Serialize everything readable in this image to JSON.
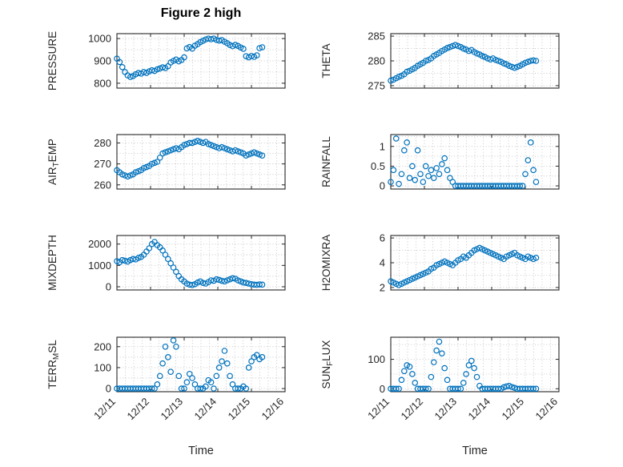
{
  "figure": {
    "title": "Figure 2 high"
  },
  "chart_data": {
    "type": "scatter",
    "title": "Figure 2 high",
    "xlabel": "Time",
    "xlim": [
      0,
      5
    ],
    "xticks": [
      0,
      1,
      2,
      3,
      4,
      5
    ],
    "xtick_labels": [
      "12/11",
      "12/12",
      "12/13",
      "12/14",
      "12/15",
      "12/16"
    ],
    "x_unit": "days since 12/11",
    "marker": {
      "shape": "circle",
      "color": "#0072BD"
    },
    "grid": "dotted",
    "x": [
      0,
      0.08,
      0.16,
      0.24,
      0.32,
      0.4,
      0.48,
      0.56,
      0.64,
      0.72,
      0.8,
      0.88,
      0.96,
      1.04,
      1.12,
      1.2,
      1.28,
      1.36,
      1.44,
      1.52,
      1.6,
      1.68,
      1.76,
      1.84,
      1.92,
      2,
      2.08,
      2.16,
      2.24,
      2.32,
      2.4,
      2.48,
      2.56,
      2.64,
      2.72,
      2.8,
      2.88,
      2.96,
      3.04,
      3.12,
      3.2,
      3.28,
      3.36,
      3.44,
      3.52,
      3.6,
      3.68,
      3.76,
      3.84,
      3.92,
      4,
      4.08,
      4.16,
      4.24,
      4.32
    ],
    "panels": [
      {
        "name": "PRESSURE",
        "ylabel": "PRESSURE",
        "ylabel_parts": [
          {
            "text": "PRESSURE",
            "sub": false
          }
        ],
        "yticks": [
          800,
          900,
          1000
        ],
        "ytick_labels": [
          "800",
          "900",
          "1000"
        ],
        "ylim": [
          778,
          1022
        ],
        "values": [
          910,
          895,
          872,
          850,
          835,
          828,
          832,
          840,
          846,
          843,
          850,
          846,
          853,
          858,
          855,
          862,
          866,
          871,
          868,
          876,
          893,
          900,
          906,
          898,
          904,
          916,
          956,
          962,
          955,
          968,
          975,
          984,
          990,
          996,
          1000,
          997,
          1000,
          994,
          991,
          993,
          986,
          979,
          971,
          966,
          972,
          967,
          960,
          954,
          921,
          916,
          922,
          918,
          925,
          957,
          961
        ]
      },
      {
        "name": "THETA",
        "ylabel": "THETA",
        "ylabel_parts": [
          {
            "text": "THETA",
            "sub": false
          }
        ],
        "yticks": [
          275,
          280,
          285
        ],
        "ytick_labels": [
          "275",
          "280",
          "285"
        ],
        "ylim": [
          274.5,
          285.5
        ],
        "values": [
          276,
          276.2,
          276.5,
          276.8,
          277,
          277.3,
          277.8,
          278,
          278.3,
          278.6,
          279,
          279.3,
          279.6,
          280,
          280.2,
          280.5,
          281,
          281.3,
          281.6,
          282,
          282.3,
          282.6,
          282.8,
          283,
          283.2,
          283,
          282.8,
          282.5,
          282.3,
          282,
          282.2,
          281.8,
          281.5,
          281.3,
          281,
          280.8,
          280.5,
          280.3,
          280.5,
          280.2,
          280,
          279.8,
          279.5,
          279.3,
          279,
          278.8,
          278.6,
          278.8,
          279,
          279.3,
          279.6,
          279.8,
          280,
          280.1,
          280
        ]
      },
      {
        "name": "AIR_TEMP",
        "ylabel": "AIR_TEMP",
        "ylabel_parts": [
          {
            "text": "AIR",
            "sub": false
          },
          {
            "text": "T",
            "sub": true
          },
          {
            "text": "EMP",
            "sub": false
          }
        ],
        "yticks": [
          260,
          270,
          280
        ],
        "ytick_labels": [
          "260",
          "270",
          "280"
        ],
        "ylim": [
          258,
          284
        ],
        "values": [
          267,
          266,
          265,
          264.5,
          264,
          264.5,
          265,
          266,
          266.5,
          267,
          268,
          268.5,
          269,
          270,
          270.5,
          271,
          273,
          275,
          275.5,
          276,
          276.5,
          277,
          277.5,
          277,
          278,
          279,
          279.5,
          280,
          280,
          280.5,
          281,
          280.5,
          280,
          280.5,
          279.5,
          279,
          278.5,
          278,
          277.5,
          278,
          277.5,
          277,
          276.5,
          276,
          276.5,
          276,
          275.5,
          275,
          274,
          274.5,
          275,
          275.5,
          275,
          274.5,
          274
        ]
      },
      {
        "name": "RAINFALL",
        "ylabel": "RAINFALL",
        "ylabel_parts": [
          {
            "text": "RAINFALL",
            "sub": false
          }
        ],
        "yticks": [
          0,
          0.5,
          1
        ],
        "ytick_labels": [
          "0",
          "0.5",
          "1"
        ],
        "ylim": [
          -0.08,
          1.3
        ],
        "values": [
          0.1,
          0.4,
          1.2,
          0.05,
          0.3,
          0.9,
          1.1,
          0.2,
          0.5,
          0.15,
          0.9,
          0.3,
          0.1,
          0.5,
          0.25,
          0.4,
          0.2,
          0.45,
          0.3,
          0.55,
          0.7,
          0.4,
          0.2,
          0.1,
          0,
          0,
          0,
          0,
          0,
          0,
          0,
          0,
          0,
          0,
          0,
          0,
          0,
          0,
          0,
          0,
          0,
          0,
          0,
          0,
          0,
          0,
          0,
          0,
          0,
          0,
          0.3,
          0.65,
          1.1,
          0.4,
          0.1
        ]
      },
      {
        "name": "MIXDEPTH",
        "ylabel": "MIXDEPTH",
        "ylabel_parts": [
          {
            "text": "MIXDEPTH",
            "sub": false
          }
        ],
        "yticks": [
          0,
          1000,
          2000
        ],
        "ytick_labels": [
          "0",
          "1000",
          "2000"
        ],
        "ylim": [
          -150,
          2400
        ],
        "values": [
          1200,
          1150,
          1250,
          1220,
          1180,
          1250,
          1300,
          1280,
          1350,
          1400,
          1500,
          1650,
          1800,
          2000,
          2100,
          1950,
          1850,
          1700,
          1500,
          1300,
          1100,
          900,
          700,
          500,
          350,
          250,
          150,
          100,
          80,
          120,
          200,
          250,
          180,
          150,
          220,
          300,
          280,
          350,
          320,
          280,
          250,
          300,
          350,
          400,
          380,
          300,
          250,
          200,
          180,
          150,
          120,
          100,
          90,
          110,
          100
        ]
      },
      {
        "name": "H2OMIXRA",
        "ylabel": "H2OMIXRA",
        "ylabel_parts": [
          {
            "text": "H2OMIXRA",
            "sub": false
          }
        ],
        "yticks": [
          2,
          4,
          6
        ],
        "ytick_labels": [
          "2",
          "4",
          "6"
        ],
        "ylim": [
          1.8,
          6.2
        ],
        "values": [
          2.5,
          2.4,
          2.3,
          2.2,
          2.3,
          2.4,
          2.5,
          2.6,
          2.7,
          2.8,
          2.9,
          3,
          3.1,
          3.2,
          3.3,
          3.5,
          3.6,
          3.8,
          3.9,
          4,
          4.1,
          4,
          3.9,
          3.8,
          4,
          4.2,
          4.3,
          4.5,
          4.4,
          4.6,
          4.8,
          5,
          5.1,
          5.2,
          5.1,
          5,
          4.9,
          4.8,
          4.7,
          4.6,
          4.5,
          4.4,
          4.3,
          4.5,
          4.6,
          4.7,
          4.8,
          4.6,
          4.5,
          4.4,
          4.3,
          4.5,
          4.4,
          4.3,
          4.4
        ]
      },
      {
        "name": "TERR_MSL",
        "ylabel": "TERR_MSL",
        "ylabel_parts": [
          {
            "text": "TERR",
            "sub": false
          },
          {
            "text": "M",
            "sub": true
          },
          {
            "text": "SL",
            "sub": false
          }
        ],
        "yticks": [
          0,
          100,
          200
        ],
        "ytick_labels": [
          "0",
          "100",
          "200"
        ],
        "ylim": [
          -15,
          245
        ],
        "values": [
          0,
          0,
          0,
          0,
          0,
          0,
          0,
          0,
          0,
          0,
          0,
          0,
          0,
          0,
          0,
          20,
          60,
          120,
          200,
          150,
          80,
          230,
          200,
          60,
          0,
          0,
          30,
          70,
          50,
          20,
          0,
          0,
          0,
          10,
          40,
          30,
          0,
          60,
          100,
          130,
          180,
          120,
          60,
          20,
          0,
          0,
          0,
          10,
          0,
          100,
          130,
          150,
          160,
          140,
          150
        ]
      },
      {
        "name": "SUN_FLUX",
        "ylabel": "SUN_FLUX",
        "ylabel_parts": [
          {
            "text": "SUN",
            "sub": false
          },
          {
            "text": "F",
            "sub": true
          },
          {
            "text": "LUX",
            "sub": false
          }
        ],
        "yticks": [
          0,
          100
        ],
        "ytick_labels": [
          "0",
          "100"
        ],
        "ylim": [
          -10,
          175
        ],
        "values": [
          0,
          0,
          0,
          0,
          30,
          60,
          80,
          75,
          50,
          20,
          0,
          0,
          0,
          0,
          0,
          40,
          90,
          130,
          160,
          120,
          70,
          30,
          0,
          0,
          0,
          0,
          0,
          20,
          50,
          80,
          95,
          70,
          40,
          10,
          0,
          0,
          0,
          0,
          0,
          0,
          0,
          0,
          5,
          8,
          10,
          6,
          3,
          0,
          0,
          0,
          0,
          0,
          0,
          0,
          0
        ]
      }
    ]
  }
}
